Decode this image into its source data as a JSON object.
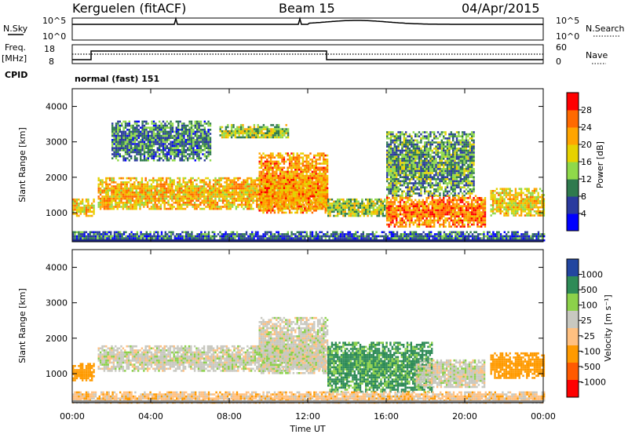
{
  "header": {
    "station": "Kerguelen (fitACF)",
    "beam": "Beam 15",
    "date": "04/Apr/2015"
  },
  "panels": {
    "noise": {
      "left_label": "N.Sky",
      "right_label": "N.Search",
      "left_ticks": [
        "10^5",
        "10^0"
      ],
      "right_ticks": [
        "10^5",
        "10^0"
      ]
    },
    "freq": {
      "left_label_line1": "Freq.",
      "left_label_line2": "[MHz]",
      "right_label": "Nave",
      "left_ticks": [
        "18",
        "8"
      ],
      "right_ticks": [
        "60",
        "0"
      ]
    },
    "cpid": {
      "label": "CPID",
      "text": "normal (fast) 151"
    },
    "power": {
      "ylabel": "Slant Range [km]",
      "yticks": [
        "4000",
        "3000",
        "2000",
        "1000"
      ],
      "colorbar_label": "Power [dB]",
      "colorbar_ticks": [
        "28",
        "24",
        "20",
        "16",
        "12",
        "8",
        "4"
      ]
    },
    "velocity": {
      "ylabel": "Slant Range [km]",
      "yticks": [
        "4000",
        "3000",
        "2000",
        "1000"
      ],
      "colorbar_label": "Velocity [m s⁻¹]",
      "colorbar_ticks": [
        "1000",
        "500",
        "100",
        "25",
        "-25",
        "-100",
        "-500",
        "-1000"
      ]
    }
  },
  "xaxis": {
    "label": "Time UT",
    "ticks": [
      "00:00",
      "04:00",
      "08:00",
      "12:00",
      "16:00",
      "20:00",
      "00:00"
    ]
  },
  "chart_data": [
    {
      "type": "heatmap",
      "name_printed": "Power [dB]",
      "x_range_hours": [
        0,
        24
      ],
      "y_range_km": [
        180,
        4500
      ],
      "color_range": [
        0,
        30
      ],
      "colors": {
        "scale": [
          "#0000ff",
          "#2a3a9e",
          "#2f7a4e",
          "#8fd94a",
          "#e6d200",
          "#ffa500",
          "#ff6a00",
          "#ff0000"
        ],
        "ground_line": "#1a237e"
      },
      "echo_regions": [
        {
          "t_start": 0.0,
          "t_end": 1.1,
          "r_min": 900,
          "r_max": 1400,
          "value": 18
        },
        {
          "t_start": 1.3,
          "t_end": 13.0,
          "r_min": 1100,
          "r_max": 2000,
          "value": 20
        },
        {
          "t_start": 9.5,
          "t_end": 13.0,
          "r_min": 1000,
          "r_max": 2700,
          "value": 22
        },
        {
          "t_start": 2.0,
          "t_end": 7.0,
          "r_min": 2500,
          "r_max": 3600,
          "value": 8
        },
        {
          "t_start": 7.5,
          "t_end": 11.0,
          "r_min": 3100,
          "r_max": 3500,
          "value": 14
        },
        {
          "t_start": 13.0,
          "t_end": 16.0,
          "r_min": 900,
          "r_max": 1400,
          "value": 14
        },
        {
          "t_start": 16.0,
          "t_end": 21.0,
          "r_min": 600,
          "r_max": 1500,
          "value": 24
        },
        {
          "t_start": 16.0,
          "t_end": 20.5,
          "r_min": 1500,
          "r_max": 3300,
          "value": 10
        },
        {
          "t_start": 21.3,
          "t_end": 24.0,
          "r_min": 900,
          "r_max": 1700,
          "value": 18
        },
        {
          "t_start": 0.0,
          "t_end": 24.0,
          "r_min": 200,
          "r_max": 480,
          "value": 6
        }
      ]
    },
    {
      "type": "heatmap",
      "name_printed": "Velocity [m s⁻¹]",
      "x_range_hours": [
        0,
        24
      ],
      "y_range_km": [
        180,
        4500
      ],
      "colors": {
        "scale": [
          "#ff0000",
          "#ff5a00",
          "#ff9a00",
          "#ffc080",
          "#c8c8c0",
          "#8cd14a",
          "#2e8b57",
          "#2246a0"
        ],
        "ground_line": "#8a8a8a"
      },
      "echo_regions": [
        {
          "t_start": 0.0,
          "t_end": 1.1,
          "r_min": 800,
          "r_max": 1300,
          "value": -300
        },
        {
          "t_start": 1.3,
          "t_end": 12.8,
          "r_min": 1100,
          "r_max": 1800,
          "value": 0
        },
        {
          "t_start": 9.5,
          "t_end": 13.0,
          "r_min": 1000,
          "r_max": 2600,
          "value": 0
        },
        {
          "t_start": 13.0,
          "t_end": 18.3,
          "r_min": 500,
          "r_max": 1900,
          "value": 150
        },
        {
          "t_start": 17.5,
          "t_end": 21.0,
          "r_min": 600,
          "r_max": 1400,
          "value": 0
        },
        {
          "t_start": 21.3,
          "t_end": 24.0,
          "r_min": 900,
          "r_max": 1600,
          "value": -300
        },
        {
          "t_start": 0.0,
          "t_end": 24.0,
          "r_min": 200,
          "r_max": 500,
          "value": -60
        }
      ]
    }
  ]
}
